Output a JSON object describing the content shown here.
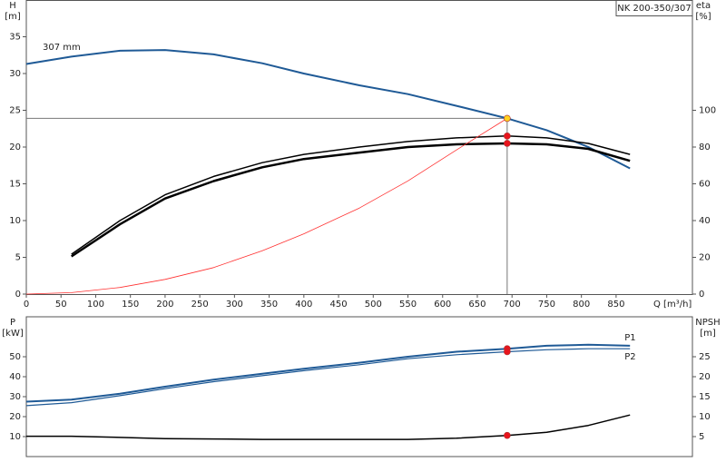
{
  "chart_data": [
    {
      "type": "line",
      "title": "NK 200-350/307",
      "y_label": "H",
      "y_unit": "[m]",
      "y2_label": "eta",
      "y2_unit": "[%]",
      "x_label": "Q [m³/h]",
      "x": [
        0,
        65,
        135,
        200,
        270,
        340,
        400,
        480,
        550,
        620,
        693,
        750,
        810,
        870
      ],
      "xlim": [
        0,
        960
      ],
      "xticks": [
        0,
        50,
        100,
        150,
        200,
        250,
        300,
        350,
        400,
        450,
        500,
        550,
        600,
        650,
        700,
        750,
        800,
        850
      ],
      "ylim": [
        0,
        40
      ],
      "yticks": [
        0,
        5,
        10,
        15,
        20,
        25,
        30,
        35
      ],
      "y2lim": [
        0,
        160
      ],
      "y2ticks": [
        0,
        20,
        40,
        60,
        80,
        100
      ],
      "duty_point": {
        "x": 693,
        "lines": true
      },
      "series": [
        {
          "name": "307 mm",
          "color": "#1f5a96",
          "width": 2,
          "marker_color": "#ffd21f",
          "values": [
            31.3,
            32.3,
            33.1,
            33.2,
            32.6,
            31.4,
            30.0,
            28.4,
            27.2,
            25.6,
            23.9,
            22.3,
            20.0,
            17.1
          ]
        },
        {
          "color": "#000000",
          "width": 1.5,
          "axis": "y2",
          "marker_color": "#e8141c",
          "values": [
            null,
            21.7,
            40,
            54,
            64,
            71.5,
            76,
            80,
            83,
            85,
            86,
            85,
            82,
            76
          ]
        },
        {
          "color": "#000000",
          "width": 2.5,
          "axis": "y2",
          "marker_color": "#e8141c",
          "values": [
            null,
            20.5,
            38,
            52,
            61.5,
            69,
            73.5,
            77,
            80,
            81.5,
            82,
            81.5,
            79,
            72.5
          ]
        },
        {
          "color": "#ff3030",
          "width": 0.8,
          "values": [
            0,
            0.2,
            0.9,
            2.0,
            3.6,
            5.9,
            8.2,
            11.7,
            15.4,
            19.6,
            23.9,
            null,
            null,
            null
          ]
        }
      ]
    },
    {
      "type": "line",
      "y_label": "P",
      "y_unit": "[kW]",
      "y2_label": "NPSH",
      "y2_unit": "[m]",
      "x": [
        0,
        65,
        135,
        200,
        270,
        340,
        400,
        480,
        550,
        620,
        693,
        750,
        810,
        870
      ],
      "xlim": [
        0,
        960
      ],
      "ylim": [
        0,
        70
      ],
      "yticks": [
        10,
        20,
        30,
        40,
        50
      ],
      "y2lim": [
        0,
        35
      ],
      "y2ticks": [
        5,
        10,
        15,
        20,
        25
      ],
      "duty_point": {
        "x": 693,
        "lines": false
      },
      "series": [
        {
          "name": "P1",
          "color": "#1f5a96",
          "width": 2,
          "marker_color": "#e8141c",
          "values": [
            27.5,
            28.5,
            31.5,
            35,
            38.5,
            41.5,
            44,
            47,
            50,
            52.5,
            54,
            55.5,
            56,
            55.5
          ]
        },
        {
          "name": "P2",
          "color": "#1f5a96",
          "width": 1.2,
          "marker_color": "#e8141c",
          "values": [
            25.5,
            27,
            30.5,
            34,
            37.5,
            40.5,
            43,
            46,
            49,
            51,
            52.5,
            53.5,
            54,
            54
          ]
        },
        {
          "color": "#000000",
          "width": 1.5,
          "axis": "y2",
          "marker_color": "#e8141c",
          "values": [
            5.1,
            5.1,
            4.8,
            4.5,
            4.4,
            4.3,
            4.3,
            4.3,
            4.3,
            4.6,
            5.3,
            6.1,
            7.8,
            10.4
          ]
        }
      ]
    }
  ]
}
